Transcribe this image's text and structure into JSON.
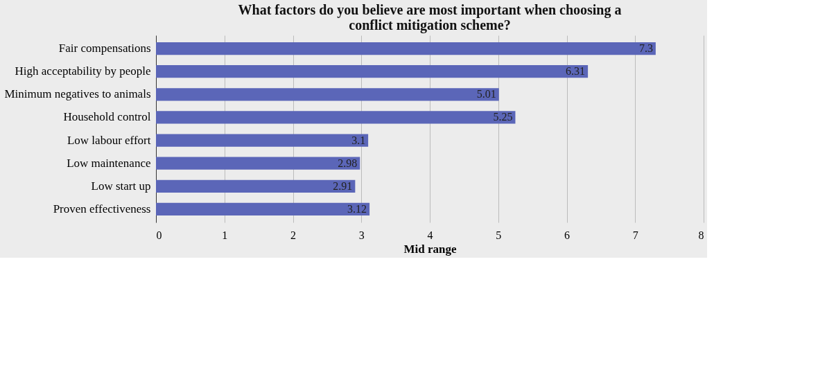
{
  "chart_data": {
    "type": "bar",
    "orientation": "horizontal",
    "title": "What factors do you believe are most important when choosing a conflict mitigation scheme?",
    "xlabel": "Mid range",
    "categories": [
      "Fair compensations",
      "High acceptability by people",
      "Minimum negatives to animals",
      "Household control",
      "Low labour effort",
      "Low maintenance",
      "Low start up",
      "Proven effectiveness"
    ],
    "values": [
      7.3,
      6.31,
      5.01,
      5.25,
      3.1,
      2.98,
      2.91,
      3.12
    ],
    "color": "#5b66b8",
    "xlim": [
      0,
      8
    ],
    "xticks": [
      0,
      1,
      2,
      3,
      4,
      5,
      6,
      7,
      8
    ],
    "grid": "x",
    "data_labels": true
  }
}
